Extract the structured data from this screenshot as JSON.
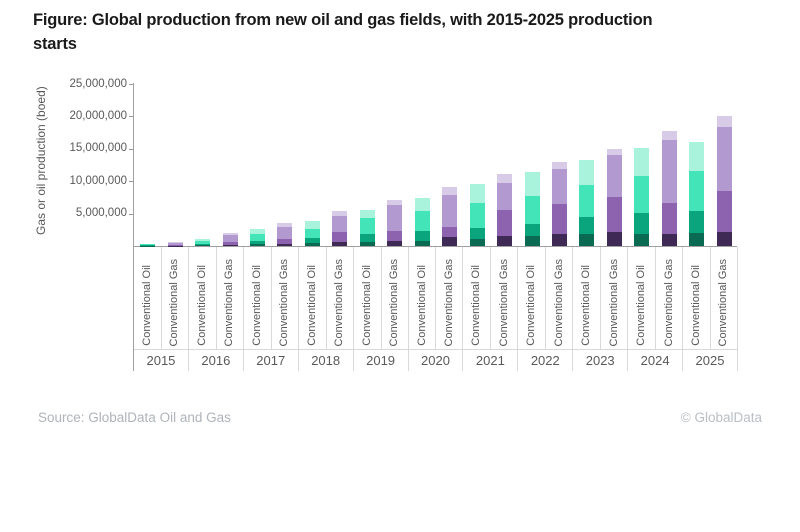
{
  "title_lines": [
    "Figure: Global production from new oil and gas fields, with 2015-2025 production",
    "starts"
  ],
  "footer": {
    "source": "Source: GlobalData Oil and Gas",
    "copyright": "© GlobalData"
  },
  "colors": {
    "title_text": "#1a1a1a",
    "axis_text": "#595959",
    "axis_line": "#a0a0a0",
    "grid_border": "#d9d9d9",
    "source_text": "#aeb4ba",
    "background": "#ffffff"
  },
  "chart_data": {
    "type": "bar",
    "stacked": true,
    "title": "Figure: Global production from new oil and gas fields, with 2015-2025 production starts",
    "xlabel": "",
    "ylabel": "Gas or oil production (boed)",
    "ylim": [
      0,
      25000000
    ],
    "grid": false,
    "legend": "none",
    "bar_labels": [
      "Conventional Oil",
      "Conventional Gas"
    ],
    "yticks": [
      {
        "value": 25000000,
        "label": "25,000,000"
      },
      {
        "value": 20000000,
        "label": "20,000,000"
      },
      {
        "value": 15000000,
        "label": "15,000,000"
      },
      {
        "value": 10000000,
        "label": "10,000,000"
      },
      {
        "value": 5000000,
        "label": "5,000,000"
      }
    ],
    "segment_colors": {
      "oil": [
        "#0a6b52",
        "#0aa47d",
        "#43e5b8",
        "#a9f2dc"
      ],
      "gas": [
        "#3e2a55",
        "#8d62ae",
        "#b29ad0",
        "#d7cbe7"
      ]
    },
    "segment_order_note": "segments listed bottom-to-top, values in boed",
    "groups": [
      {
        "year": "2015",
        "bars": [
          {
            "series": "Conventional Oil",
            "key": "oil",
            "total": 350000,
            "segments": [
              50000,
              100000,
              120000,
              80000
            ]
          },
          {
            "series": "Conventional Gas",
            "key": "gas",
            "total": 550000,
            "segments": [
              50000,
              150000,
              250000,
              100000
            ]
          }
        ]
      },
      {
        "year": "2016",
        "bars": [
          {
            "series": "Conventional Oil",
            "key": "oil",
            "total": 1100000,
            "segments": [
              100000,
              250000,
              450000,
              300000
            ]
          },
          {
            "series": "Conventional Gas",
            "key": "gas",
            "total": 2000000,
            "segments": [
              200000,
              450000,
              1000000,
              350000
            ]
          }
        ]
      },
      {
        "year": "2017",
        "bars": [
          {
            "series": "Conventional Oil",
            "key": "oil",
            "total": 2600000,
            "segments": [
              250000,
              550000,
              1100000,
              700000
            ]
          },
          {
            "series": "Conventional Gas",
            "key": "gas",
            "total": 3600000,
            "segments": [
              250000,
              900000,
              1850000,
              600000
            ]
          }
        ]
      },
      {
        "year": "2018",
        "bars": [
          {
            "series": "Conventional Oil",
            "key": "oil",
            "total": 3900000,
            "segments": [
              450000,
              750000,
              1450000,
              1250000
            ]
          },
          {
            "series": "Conventional Gas",
            "key": "gas",
            "total": 5400000,
            "segments": [
              600000,
              1500000,
              2600000,
              700000
            ]
          }
        ]
      },
      {
        "year": "2019",
        "bars": [
          {
            "series": "Conventional Oil",
            "key": "oil",
            "total": 5600000,
            "segments": [
              550000,
              1250000,
              2450000,
              1350000
            ]
          },
          {
            "series": "Conventional Gas",
            "key": "gas",
            "total": 7100000,
            "segments": [
              800000,
              1550000,
              3950000,
              800000
            ]
          }
        ]
      },
      {
        "year": "2020",
        "bars": [
          {
            "series": "Conventional Oil",
            "key": "oil",
            "total": 7400000,
            "segments": [
              800000,
              1550000,
              3000000,
              2050000
            ]
          },
          {
            "series": "Conventional Gas",
            "key": "gas",
            "total": 9100000,
            "segments": [
              1400000,
              1500000,
              5000000,
              1200000
            ]
          }
        ]
      },
      {
        "year": "2021",
        "bars": [
          {
            "series": "Conventional Oil",
            "key": "oil",
            "total": 9500000,
            "segments": [
              1100000,
              1650000,
              3850000,
              2900000
            ]
          },
          {
            "series": "Conventional Gas",
            "key": "gas",
            "total": 11100000,
            "segments": [
              1600000,
              3900000,
              4250000,
              1350000
            ]
          }
        ]
      },
      {
        "year": "2022",
        "bars": [
          {
            "series": "Conventional Oil",
            "key": "oil",
            "total": 11400000,
            "segments": [
              1500000,
              1950000,
              4250000,
              3700000
            ]
          },
          {
            "series": "Conventional Gas",
            "key": "gas",
            "total": 13000000,
            "segments": [
              1900000,
              4600000,
              5400000,
              1100000
            ]
          }
        ]
      },
      {
        "year": "2023",
        "bars": [
          {
            "series": "Conventional Oil",
            "key": "oil",
            "total": 13300000,
            "segments": [
              1900000,
              2600000,
              4850000,
              3950000
            ]
          },
          {
            "series": "Conventional Gas",
            "key": "gas",
            "total": 15000000,
            "segments": [
              2200000,
              5300000,
              6550000,
              950000
            ]
          }
        ]
      },
      {
        "year": "2024",
        "bars": [
          {
            "series": "Conventional Oil",
            "key": "oil",
            "total": 15200000,
            "segments": [
              1800000,
              3300000,
              5750000,
              4350000
            ]
          },
          {
            "series": "Conventional Gas",
            "key": "gas",
            "total": 17800000,
            "segments": [
              1800000,
              4900000,
              9600000,
              1500000
            ]
          }
        ]
      },
      {
        "year": "2025",
        "bars": [
          {
            "series": "Conventional Oil",
            "key": "oil",
            "total": 16100000,
            "segments": [
              2050000,
              3350000,
              6200000,
              4500000
            ]
          },
          {
            "series": "Conventional Gas",
            "key": "gas",
            "total": 20100000,
            "segments": [
              2200000,
              6300000,
              9800000,
              1800000
            ]
          }
        ]
      }
    ]
  }
}
